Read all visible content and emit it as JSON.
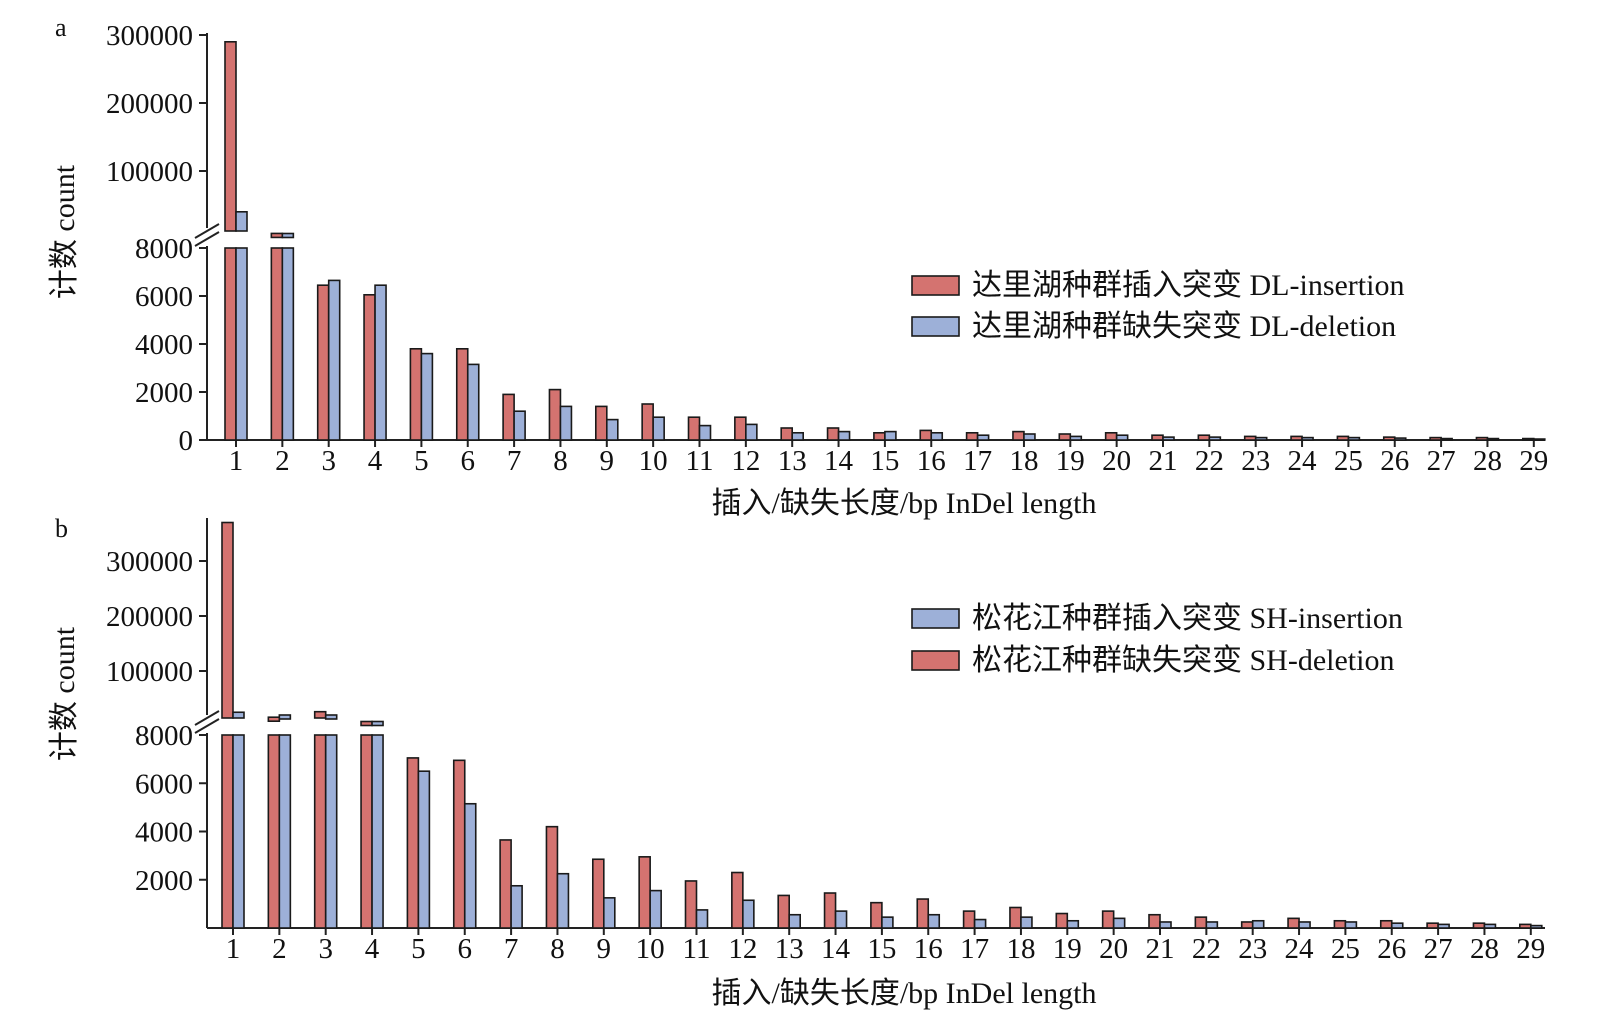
{
  "colors": {
    "red": "#d47370",
    "blue": "#9db0d8",
    "axis": "#222222"
  },
  "chart_data": [
    {
      "panel": "a",
      "type": "bar",
      "ylabel": "计数 count",
      "xlabel": "插入/缺失长度/bp InDel length",
      "axis_break": true,
      "lower_ylim": [
        0,
        8000
      ],
      "lower_yticks": [
        "0",
        "2000",
        "4000",
        "6000",
        "8000"
      ],
      "upper_ylim": [
        0,
        300000
      ],
      "upper_yticks": [
        "100000",
        "200000",
        "300000"
      ],
      "categories": [
        "1",
        "2",
        "3",
        "4",
        "5",
        "6",
        "7",
        "8",
        "9",
        "10",
        "11",
        "12",
        "13",
        "14",
        "15",
        "16",
        "17",
        "18",
        "19",
        "20",
        "21",
        "22",
        "23",
        "24",
        "25",
        "26",
        "27",
        "28",
        "29"
      ],
      "legend_position": "right",
      "series": [
        {
          "name": "达里湖种群插入突变 DL-insertion",
          "color": "red",
          "values": [
            290000,
            8200,
            6450,
            6050,
            3800,
            3800,
            1900,
            2100,
            1400,
            1500,
            950,
            950,
            500,
            500,
            300,
            400,
            300,
            350,
            250,
            300,
            200,
            200,
            150,
            150,
            150,
            120,
            100,
            100,
            60
          ]
        },
        {
          "name": "达里湖种群缺失突变 DL-deletion",
          "color": "blue",
          "values": [
            40000,
            8100,
            6650,
            6450,
            3600,
            3150,
            1200,
            1400,
            850,
            950,
            600,
            650,
            300,
            350,
            350,
            300,
            200,
            250,
            150,
            200,
            120,
            120,
            100,
            100,
            100,
            80,
            60,
            60,
            40
          ]
        }
      ]
    },
    {
      "panel": "b",
      "type": "bar",
      "ylabel": "计数 count",
      "xlabel": "插入/缺失长度/bp InDel length",
      "axis_break": true,
      "lower_ylim": [
        0,
        8000
      ],
      "lower_yticks": [
        "2000",
        "4000",
        "6000",
        "8000"
      ],
      "upper_ylim": [
        0,
        380000
      ],
      "upper_yticks": [
        "100000",
        "200000",
        "300000"
      ],
      "categories": [
        "1",
        "2",
        "3",
        "4",
        "5",
        "6",
        "7",
        "8",
        "9",
        "10",
        "11",
        "12",
        "13",
        "14",
        "15",
        "16",
        "17",
        "18",
        "19",
        "20",
        "21",
        "22",
        "23",
        "24",
        "25",
        "26",
        "27",
        "28",
        "29"
      ],
      "legend_position": "right",
      "series": [
        {
          "name": "松花江种群缺失突变 SH-deletion",
          "color": "red",
          "values": [
            370000,
            16000,
            26000,
            8200,
            7050,
            6950,
            3650,
            4200,
            2850,
            2950,
            1950,
            2300,
            1350,
            1450,
            1050,
            1200,
            700,
            850,
            600,
            700,
            550,
            450,
            250,
            400,
            300,
            300,
            200,
            200,
            150
          ]
        },
        {
          "name": "松花江种群插入突变 SH-insertion",
          "color": "blue",
          "values": [
            25000,
            20000,
            20000,
            8200,
            6500,
            5150,
            1750,
            2250,
            1250,
            1550,
            750,
            1150,
            550,
            700,
            450,
            550,
            350,
            450,
            300,
            400,
            250,
            250,
            300,
            250,
            250,
            200,
            150,
            150,
            100
          ]
        }
      ],
      "legend_order": [
        1,
        0
      ]
    }
  ]
}
